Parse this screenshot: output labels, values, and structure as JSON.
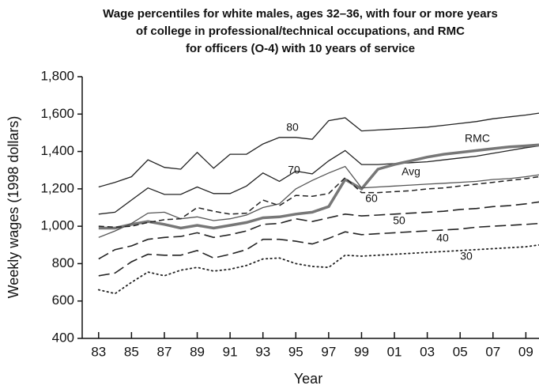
{
  "chart_data": {
    "type": "line",
    "title": [
      "Wage percentiles for white males, ages 32–36, with four or more years",
      "of college in professional/technical occupations, and RMC",
      "for officers (O-4) with 10 years of service"
    ],
    "xlabel": "Year",
    "ylabel": "Weekly wages (1998 dollars)",
    "x": [
      1983,
      1984,
      1985,
      1986,
      1987,
      1988,
      1989,
      1990,
      1991,
      1992,
      1993,
      1994,
      1995,
      1996,
      1997,
      1998,
      1999,
      2000,
      2001,
      2002,
      2003,
      2004,
      2005,
      2006,
      2007,
      2008,
      2009,
      2009.8
    ],
    "series": [
      {
        "name": "80",
        "color": "#222222",
        "dash": "solid",
        "values": [
          1210,
          1235,
          1265,
          1355,
          1315,
          1305,
          1395,
          1310,
          1385,
          1385,
          1440,
          1475,
          1475,
          1465,
          1565,
          1580,
          1510,
          1515,
          1520,
          1525,
          1530,
          1540,
          1550,
          1560,
          1575,
          1585,
          1595,
          1605
        ]
      },
      {
        "name": "70",
        "color": "#222222",
        "dash": "solid",
        "values": [
          1065,
          1075,
          1140,
          1205,
          1170,
          1170,
          1210,
          1175,
          1175,
          1215,
          1285,
          1240,
          1295,
          1280,
          1350,
          1405,
          1330,
          1330,
          1335,
          1340,
          1345,
          1355,
          1365,
          1375,
          1390,
          1405,
          1420,
          1430
        ]
      },
      {
        "name": "RMC",
        "color": "#777777",
        "dash": "thick",
        "values": [
          990,
          990,
          1010,
          1025,
          1010,
          990,
          1005,
          990,
          1005,
          1020,
          1045,
          1050,
          1065,
          1075,
          1105,
          1250,
          1200,
          1305,
          1330,
          1350,
          1370,
          1385,
          1395,
          1405,
          1415,
          1425,
          1430,
          1435
        ]
      },
      {
        "name": "Avg",
        "color": "#555555",
        "dash": "solid",
        "values": [
          940,
          975,
          1015,
          1070,
          1075,
          1040,
          1050,
          1030,
          1040,
          1060,
          1100,
          1120,
          1200,
          1245,
          1285,
          1320,
          1205,
          1210,
          1215,
          1220,
          1225,
          1230,
          1235,
          1240,
          1250,
          1255,
          1265,
          1275
        ]
      },
      {
        "name": "60",
        "color": "#222222",
        "dash": "dashed",
        "values": [
          1000,
          995,
          1000,
          1020,
          1035,
          1040,
          1100,
          1080,
          1065,
          1070,
          1140,
          1110,
          1165,
          1160,
          1175,
          1260,
          1180,
          1180,
          1185,
          1190,
          1200,
          1205,
          1215,
          1225,
          1235,
          1245,
          1255,
          1265
        ]
      },
      {
        "name": "50",
        "color": "#222222",
        "dash": "longdash",
        "values": [
          825,
          875,
          895,
          930,
          940,
          945,
          965,
          940,
          955,
          975,
          1010,
          1015,
          1040,
          1025,
          1045,
          1065,
          1055,
          1060,
          1065,
          1070,
          1075,
          1080,
          1090,
          1095,
          1105,
          1110,
          1120,
          1130
        ]
      },
      {
        "name": "40",
        "color": "#222222",
        "dash": "longdash",
        "values": [
          735,
          750,
          810,
          850,
          845,
          845,
          870,
          830,
          850,
          875,
          930,
          930,
          920,
          905,
          935,
          970,
          955,
          960,
          965,
          970,
          975,
          980,
          985,
          995,
          1000,
          1005,
          1010,
          1015
        ]
      },
      {
        "name": "30",
        "color": "#222222",
        "dash": "dotted",
        "values": [
          660,
          640,
          700,
          755,
          735,
          765,
          780,
          760,
          770,
          790,
          825,
          830,
          800,
          785,
          780,
          845,
          840,
          845,
          850,
          855,
          860,
          865,
          870,
          875,
          880,
          885,
          890,
          900
        ]
      }
    ],
    "xlim": [
      1982,
      2009.8
    ],
    "xticks": [
      {
        "value": 1983,
        "label": "83"
      },
      {
        "value": 1985,
        "label": "85"
      },
      {
        "value": 1987,
        "label": "87"
      },
      {
        "value": 1989,
        "label": "89"
      },
      {
        "value": 1991,
        "label": "91"
      },
      {
        "value": 1993,
        "label": "93"
      },
      {
        "value": 1995,
        "label": "95"
      },
      {
        "value": 1997,
        "label": "97"
      },
      {
        "value": 1999,
        "label": "99"
      },
      {
        "value": 2001,
        "label": "01"
      },
      {
        "value": 2003,
        "label": "03"
      },
      {
        "value": 2005,
        "label": "05"
      },
      {
        "value": 2007,
        "label": "07"
      },
      {
        "value": 2009,
        "label": "09"
      }
    ],
    "ylim": [
      400,
      1800
    ],
    "yticks": [
      400,
      600,
      800,
      {
        "value": 1000,
        "label": "1,000"
      },
      {
        "value": 1200,
        "label": "1,200"
      },
      {
        "value": 1400,
        "label": "1,400"
      },
      {
        "value": 1600,
        "label": "1,600"
      },
      {
        "value": 1800,
        "label": "1,800"
      }
    ],
    "grid": false
  }
}
